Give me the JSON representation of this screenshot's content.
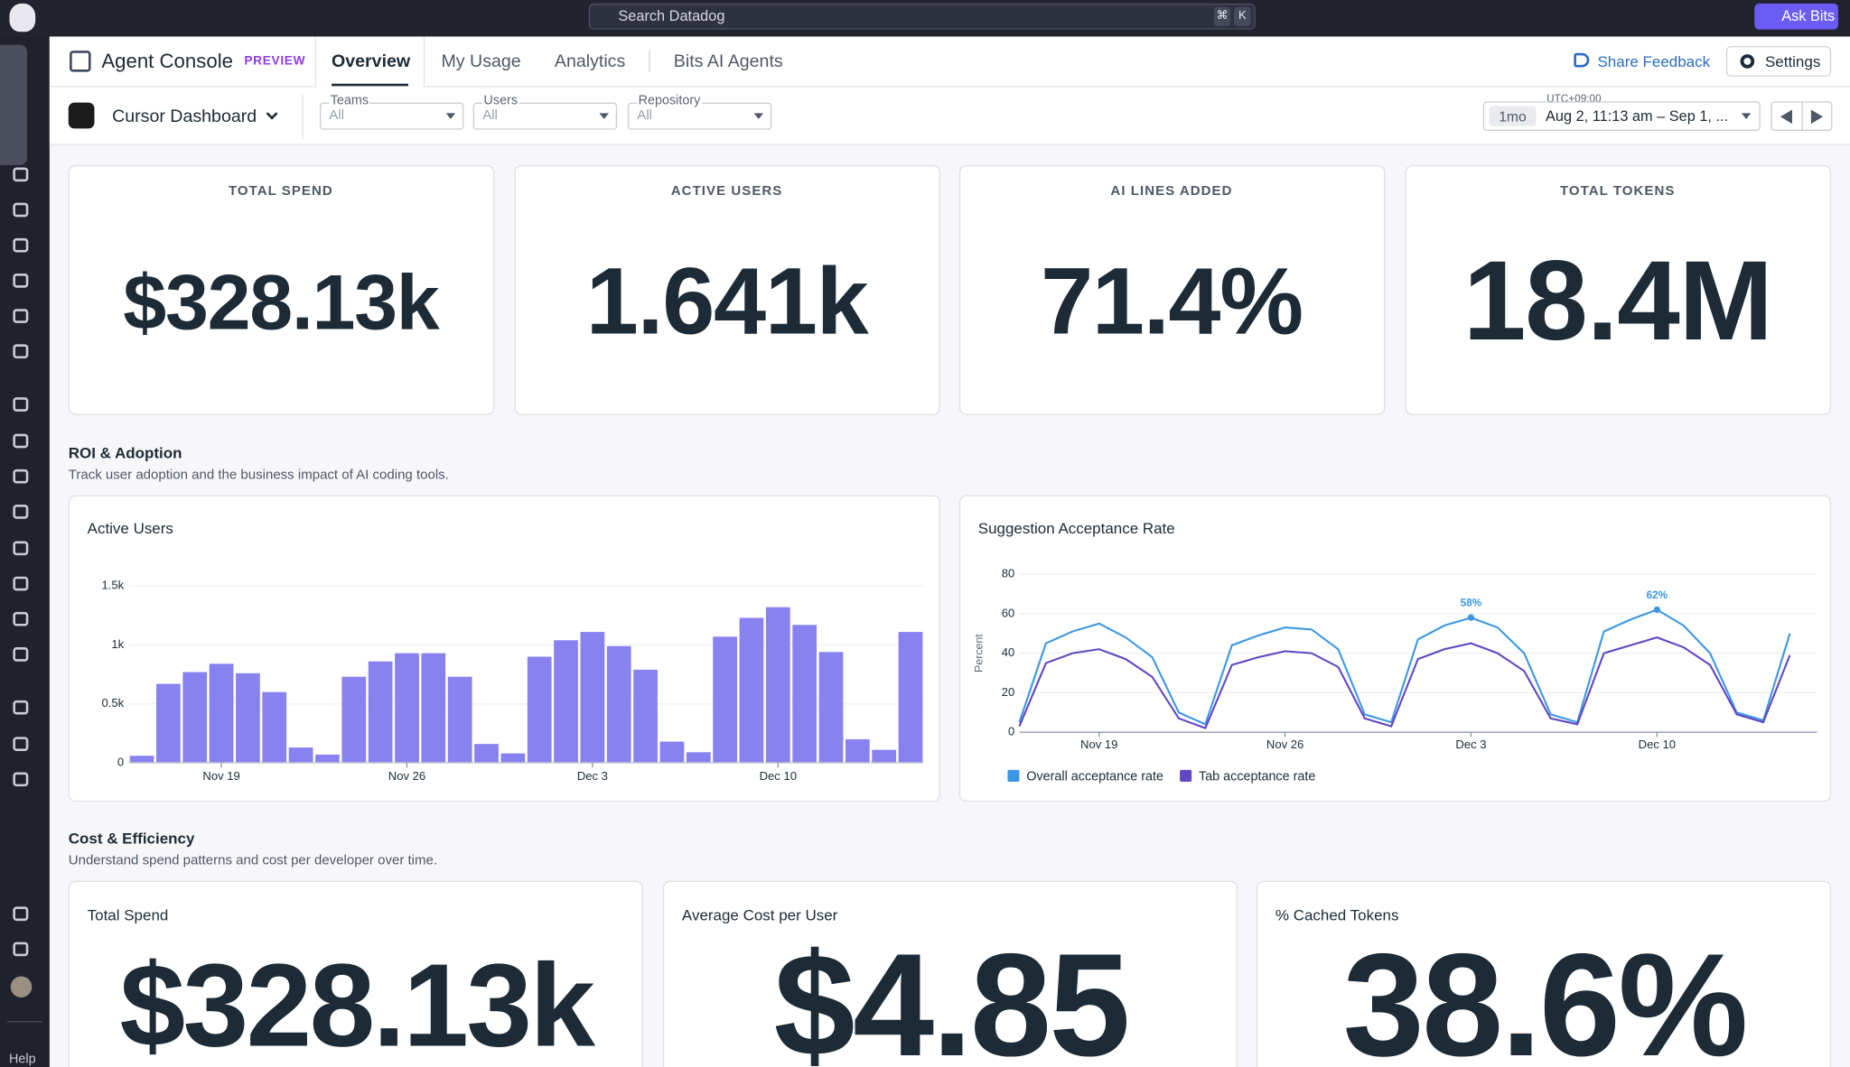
{
  "search": {
    "placeholder": "Search Datadog",
    "shortcut": [
      "⌘",
      "K"
    ]
  },
  "ask_bits": "Ask Bits",
  "header": {
    "title": "Agent Console",
    "badge": "PREVIEW",
    "tabs": [
      "Overview",
      "My Usage",
      "Analytics",
      "Bits AI Agents"
    ],
    "feedback": "Share Feedback",
    "settings": "Settings"
  },
  "toolbar": {
    "dashboard": "Cursor Dashboard",
    "filters": [
      {
        "label": "Teams",
        "value": "All"
      },
      {
        "label": "Users",
        "value": "All"
      },
      {
        "label": "Repository",
        "value": "All"
      }
    ],
    "timezone": "UTC+09:00",
    "range_badge": "1mo",
    "range": "Aug 2, 11:13 am – Sep 1, ..."
  },
  "kpis": [
    {
      "title": "TOTAL SPEND",
      "value": "$328.13k"
    },
    {
      "title": "ACTIVE USERS",
      "value": "1.641k"
    },
    {
      "title": "AI LINES ADDED",
      "value": "71.4%"
    },
    {
      "title": "TOTAL TOKENS",
      "value": "18.4M"
    }
  ],
  "sections": [
    {
      "title": "ROI & Adoption",
      "subtitle": "Track user adoption and the business impact of AI coding tools."
    },
    {
      "title": "Cost & Efficiency",
      "subtitle": "Understand spend patterns and cost per developer over time."
    }
  ],
  "chart_data": [
    {
      "type": "bar",
      "title": "Active Users",
      "color": "#8882f0",
      "categories": [
        null,
        null,
        null,
        "Nov 19",
        null,
        null,
        null,
        null,
        null,
        null,
        "Nov 26",
        null,
        null,
        null,
        null,
        null,
        null,
        "Dec 3",
        null,
        null,
        null,
        null,
        null,
        null,
        "Dec 10",
        null,
        null,
        null,
        null,
        null
      ],
      "values": [
        60,
        670,
        770,
        840,
        760,
        600,
        130,
        70,
        730,
        860,
        930,
        930,
        730,
        160,
        80,
        900,
        1040,
        1110,
        990,
        790,
        180,
        90,
        1070,
        1230,
        1320,
        1170,
        940,
        200,
        110,
        1110
      ],
      "ylim": [
        0,
        1500
      ],
      "yticks": [
        0,
        {
          "value": 500,
          "label": "0.5k"
        },
        {
          "value": 1000,
          "label": "1k"
        },
        {
          "value": 1500,
          "label": "1.5k"
        }
      ]
    },
    {
      "type": "line",
      "title": "Suggestion Acceptance Rate",
      "y_label": "Percent",
      "legend": "bottom",
      "categories": [
        null,
        null,
        null,
        "Nov 19",
        null,
        null,
        null,
        null,
        null,
        null,
        "Nov 26",
        null,
        null,
        null,
        null,
        null,
        null,
        "Dec 3",
        null,
        null,
        null,
        null,
        null,
        null,
        "Dec 10",
        null,
        null,
        null,
        null,
        null
      ],
      "ylim": [
        0,
        80
      ],
      "yticks": [
        0,
        20,
        40,
        60,
        80
      ],
      "series": [
        {
          "name": "Overall acceptance rate",
          "color": "#3b97e3",
          "values": [
            5,
            45,
            51,
            55,
            48,
            38,
            10,
            4,
            44,
            49,
            53,
            52,
            42,
            9,
            5,
            47,
            54,
            58,
            53,
            40,
            9,
            5,
            51,
            57,
            62,
            54,
            40,
            10,
            6,
            50
          ],
          "value_labels": [
            null,
            null,
            null,
            null,
            null,
            null,
            null,
            null,
            null,
            null,
            null,
            null,
            null,
            null,
            null,
            null,
            null,
            "58%",
            null,
            null,
            null,
            null,
            null,
            null,
            "62%",
            null,
            null,
            null,
            null,
            null
          ]
        },
        {
          "name": "Tab acceptance rate",
          "color": "#6246c2",
          "values": [
            3,
            35,
            40,
            42,
            37,
            28,
            7,
            2,
            34,
            38,
            41,
            40,
            33,
            7,
            3,
            37,
            42,
            45,
            40,
            31,
            7,
            4,
            40,
            44,
            48,
            43,
            34,
            9,
            5,
            39
          ]
        }
      ]
    }
  ],
  "bottom_cards": [
    {
      "title": "Total Spend",
      "value": "$328.13k"
    },
    {
      "title": "Average Cost per User",
      "value": "$4.85"
    },
    {
      "title": "% Cached Tokens",
      "value": "38.6%"
    }
  ],
  "sidebar": {
    "help": "Help"
  }
}
